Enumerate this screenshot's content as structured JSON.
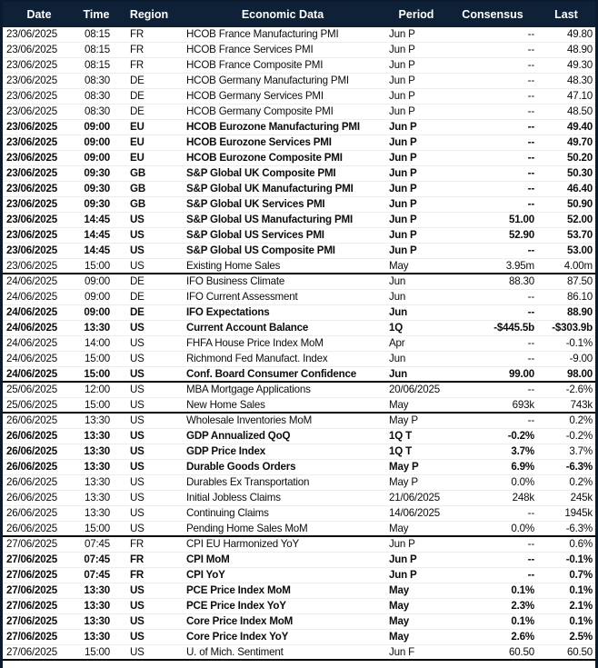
{
  "colors": {
    "header_bg": "#0e2137",
    "header_text": "#ffffff",
    "frame_border": "#0b1a2c",
    "group_separator": "#000000",
    "row_separator": "#ededed",
    "row_text": "#0c0c0c"
  },
  "table": {
    "header": {
      "date": "Date",
      "time": "Time",
      "region": "Region",
      "name": "Economic Data",
      "period": "Period",
      "consensus": "Consensus",
      "last": "Last"
    },
    "rows": [
      {
        "date": "23/06/2025",
        "time": "08:15",
        "region": "FR",
        "name": "HCOB France Manufacturing PMI",
        "period": "Jun P",
        "consensus": "--",
        "last": "49.80",
        "bold": false,
        "group_end": false
      },
      {
        "date": "23/06/2025",
        "time": "08:15",
        "region": "FR",
        "name": "HCOB France Services PMI",
        "period": "Jun P",
        "consensus": "--",
        "last": "48.90",
        "bold": false,
        "group_end": false
      },
      {
        "date": "23/06/2025",
        "time": "08:15",
        "region": "FR",
        "name": "HCOB France Composite PMI",
        "period": "Jun P",
        "consensus": "--",
        "last": "49.30",
        "bold": false,
        "group_end": false
      },
      {
        "date": "23/06/2025",
        "time": "08:30",
        "region": "DE",
        "name": "HCOB Germany Manufacturing PMI",
        "period": "Jun P",
        "consensus": "--",
        "last": "48.30",
        "bold": false,
        "group_end": false
      },
      {
        "date": "23/06/2025",
        "time": "08:30",
        "region": "DE",
        "name": "HCOB Germany Services PMI",
        "period": "Jun P",
        "consensus": "--",
        "last": "47.10",
        "bold": false,
        "group_end": false
      },
      {
        "date": "23/06/2025",
        "time": "08:30",
        "region": "DE",
        "name": "HCOB Germany Composite PMI",
        "period": "Jun P",
        "consensus": "--",
        "last": "48.50",
        "bold": false,
        "group_end": false
      },
      {
        "date": "23/06/2025",
        "time": "09:00",
        "region": "EU",
        "name": "HCOB Eurozone Manufacturing PMI",
        "period": "Jun P",
        "consensus": "--",
        "last": "49.40",
        "bold": true,
        "group_end": false
      },
      {
        "date": "23/06/2025",
        "time": "09:00",
        "region": "EU",
        "name": "HCOB Eurozone Services PMI",
        "period": "Jun P",
        "consensus": "--",
        "last": "49.70",
        "bold": true,
        "group_end": false
      },
      {
        "date": "23/06/2025",
        "time": "09:00",
        "region": "EU",
        "name": "HCOB Eurozone Composite PMI",
        "period": "Jun P",
        "consensus": "--",
        "last": "50.20",
        "bold": true,
        "group_end": false
      },
      {
        "date": "23/06/2025",
        "time": "09:30",
        "region": "GB",
        "name": "S&P Global UK Composite PMI",
        "period": "Jun P",
        "consensus": "--",
        "last": "50.30",
        "bold": true,
        "group_end": false
      },
      {
        "date": "23/06/2025",
        "time": "09:30",
        "region": "GB",
        "name": "S&P Global UK Manufacturing PMI",
        "period": "Jun P",
        "consensus": "--",
        "last": "46.40",
        "bold": true,
        "group_end": false
      },
      {
        "date": "23/06/2025",
        "time": "09:30",
        "region": "GB",
        "name": "S&P Global UK Services PMI",
        "period": "Jun P",
        "consensus": "--",
        "last": "50.90",
        "bold": true,
        "group_end": false
      },
      {
        "date": "23/06/2025",
        "time": "14:45",
        "region": "US",
        "name": "S&P Global US Manufacturing PMI",
        "period": "Jun P",
        "consensus": "51.00",
        "last": "52.00",
        "bold": true,
        "group_end": false
      },
      {
        "date": "23/06/2025",
        "time": "14:45",
        "region": "US",
        "name": "S&P Global US Services PMI",
        "period": "Jun P",
        "consensus": "52.90",
        "last": "53.70",
        "bold": true,
        "group_end": false
      },
      {
        "date": "23/06/2025",
        "time": "14:45",
        "region": "US",
        "name": "S&P Global US Composite PMI",
        "period": "Jun P",
        "consensus": "--",
        "last": "53.00",
        "bold": true,
        "group_end": false
      },
      {
        "date": "23/06/2025",
        "time": "15:00",
        "region": "US",
        "name": "Existing Home Sales",
        "period": "May",
        "consensus": "3.95m",
        "last": "4.00m",
        "bold": false,
        "group_end": true
      },
      {
        "date": "24/06/2025",
        "time": "09:00",
        "region": "DE",
        "name": "IFO Business Climate",
        "period": "Jun",
        "consensus": "88.30",
        "last": "87.50",
        "bold": false,
        "group_end": false
      },
      {
        "date": "24/06/2025",
        "time": "09:00",
        "region": "DE",
        "name": "IFO Current Assessment",
        "period": "Jun",
        "consensus": "--",
        "last": "86.10",
        "bold": false,
        "group_end": false
      },
      {
        "date": "24/06/2025",
        "time": "09:00",
        "region": "DE",
        "name": "IFO Expectations",
        "period": "Jun",
        "consensus": "--",
        "last": "88.90",
        "bold": true,
        "group_end": false
      },
      {
        "date": "24/06/2025",
        "time": "13:30",
        "region": "US",
        "name": "Current Account Balance",
        "period": "1Q",
        "consensus": "-$445.5b",
        "last": "-$303.9b",
        "bold": true,
        "group_end": false
      },
      {
        "date": "24/06/2025",
        "time": "14:00",
        "region": "US",
        "name": "FHFA House Price Index MoM",
        "period": "Apr",
        "consensus": "--",
        "last": "-0.1%",
        "bold": false,
        "group_end": false
      },
      {
        "date": "24/06/2025",
        "time": "15:00",
        "region": "US",
        "name": "Richmond Fed Manufact. Index",
        "period": "Jun",
        "consensus": "--",
        "last": "-9.00",
        "bold": false,
        "group_end": false
      },
      {
        "date": "24/06/2025",
        "time": "15:00",
        "region": "US",
        "name": "Conf. Board Consumer Confidence",
        "period": "Jun",
        "consensus": "99.00",
        "last": "98.00",
        "bold": true,
        "group_end": true
      },
      {
        "date": "25/06/2025",
        "time": "12:00",
        "region": "US",
        "name": "MBA Mortgage Applications",
        "period": "20/06/2025",
        "consensus": "--",
        "last": "-2.6%",
        "bold": false,
        "group_end": false
      },
      {
        "date": "25/06/2025",
        "time": "15:00",
        "region": "US",
        "name": "New Home Sales",
        "period": "May",
        "consensus": "693k",
        "last": "743k",
        "bold": false,
        "group_end": true
      },
      {
        "date": "26/06/2025",
        "time": "13:30",
        "region": "US",
        "name": "Wholesale Inventories MoM",
        "period": "May P",
        "consensus": "--",
        "last": "0.2%",
        "bold": false,
        "group_end": false
      },
      {
        "date": "26/06/2025",
        "time": "13:30",
        "region": "US",
        "name": "GDP Annualized QoQ",
        "period": "1Q T",
        "consensus": "-0.2%",
        "last": "-0.2%",
        "bold": true,
        "last_bold": false,
        "group_end": false
      },
      {
        "date": "26/06/2025",
        "time": "13:30",
        "region": "US",
        "name": "GDP Price Index",
        "period": "1Q T",
        "consensus": "3.7%",
        "last": "3.7%",
        "bold": true,
        "last_bold": false,
        "group_end": false
      },
      {
        "date": "26/06/2025",
        "time": "13:30",
        "region": "US",
        "name": "Durable Goods Orders",
        "period": "May P",
        "consensus": "6.9%",
        "last": "-6.3%",
        "bold": true,
        "group_end": false
      },
      {
        "date": "26/06/2025",
        "time": "13:30",
        "region": "US",
        "name": "Durables Ex Transportation",
        "period": "May P",
        "consensus": "0.0%",
        "last": "0.2%",
        "bold": false,
        "group_end": false
      },
      {
        "date": "26/06/2025",
        "time": "13:30",
        "region": "US",
        "name": "Initial Jobless Claims",
        "period": "21/06/2025",
        "consensus": "248k",
        "last": "245k",
        "bold": false,
        "group_end": false
      },
      {
        "date": "26/06/2025",
        "time": "13:30",
        "region": "US",
        "name": "Continuing Claims",
        "period": "14/06/2025",
        "consensus": "--",
        "last": "1945k",
        "bold": false,
        "group_end": false
      },
      {
        "date": "26/06/2025",
        "time": "15:00",
        "region": "US",
        "name": "Pending Home Sales MoM",
        "period": "May",
        "consensus": "0.0%",
        "last": "-6.3%",
        "bold": false,
        "group_end": true
      },
      {
        "date": "27/06/2025",
        "time": "07:45",
        "region": "FR",
        "name": "CPI EU Harmonized YoY",
        "period": "Jun P",
        "consensus": "--",
        "last": "0.6%",
        "bold": false,
        "group_end": false
      },
      {
        "date": "27/06/2025",
        "time": "07:45",
        "region": "FR",
        "name": "CPI MoM",
        "period": "Jun P",
        "consensus": "--",
        "last": "-0.1%",
        "bold": true,
        "group_end": false
      },
      {
        "date": "27/06/2025",
        "time": "07:45",
        "region": "FR",
        "name": "CPI YoY",
        "period": "Jun P",
        "consensus": "--",
        "last": "0.7%",
        "bold": true,
        "group_end": false
      },
      {
        "date": "27/06/2025",
        "time": "13:30",
        "region": "US",
        "name": "PCE Price Index MoM",
        "period": "May",
        "consensus": "0.1%",
        "last": "0.1%",
        "bold": true,
        "group_end": false
      },
      {
        "date": "27/06/2025",
        "time": "13:30",
        "region": "US",
        "name": "PCE Price Index YoY",
        "period": "May",
        "consensus": "2.3%",
        "last": "2.1%",
        "bold": true,
        "group_end": false
      },
      {
        "date": "27/06/2025",
        "time": "13:30",
        "region": "US",
        "name": "Core Price Index MoM",
        "period": "May",
        "consensus": "0.1%",
        "last": "0.1%",
        "bold": true,
        "group_end": false
      },
      {
        "date": "27/06/2025",
        "time": "13:30",
        "region": "US",
        "name": "Core Price Index YoY",
        "period": "May",
        "consensus": "2.6%",
        "last": "2.5%",
        "bold": true,
        "group_end": false
      },
      {
        "date": "27/06/2025",
        "time": "15:00",
        "region": "US",
        "name": "U. of Mich. Sentiment",
        "period": "Jun F",
        "consensus": "60.50",
        "last": "60.50",
        "bold": false,
        "group_end": true
      }
    ]
  }
}
